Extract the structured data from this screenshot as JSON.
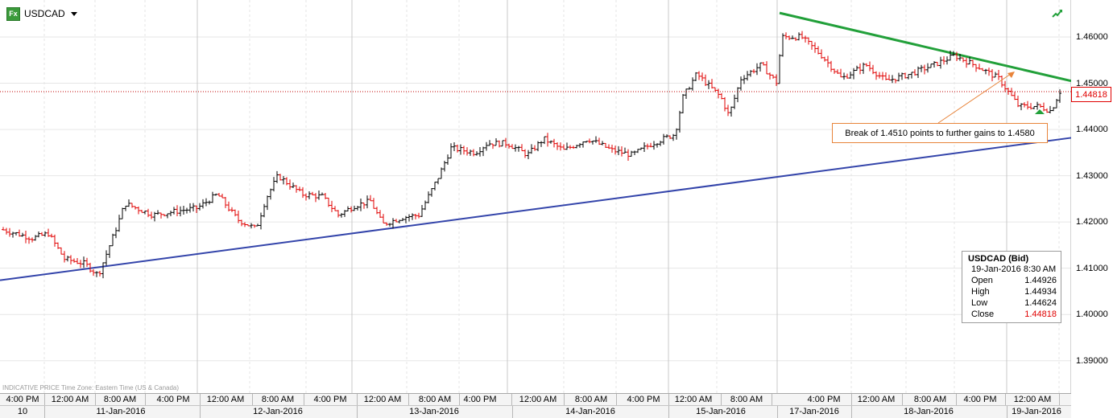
{
  "header": {
    "symbol": "USDCAD",
    "fx_icon": "fx-icon",
    "corner_icon": "trend-arrow-icon"
  },
  "footnote": "INDICATIVE PRICE   Time Zone: Eastern Time (US & Canada)",
  "price_tag": "1.44818",
  "annotation": "Break of 1.4510 points to further gains to 1.4580",
  "info_box": {
    "title": "USDCAD (Bid)",
    "datetime": "19-Jan-2016 8:30 AM",
    "rows": [
      {
        "label": "Open",
        "value": "1.44926"
      },
      {
        "label": "High",
        "value": "1.44934"
      },
      {
        "label": "Low",
        "value": "1.44624"
      },
      {
        "label": "Close",
        "value": "1.44818"
      }
    ]
  },
  "time_ticks": [
    "4:00 PM",
    "12:00 AM",
    "8:00 AM",
    "4:00 PM",
    "12:00 AM",
    "8:00 AM",
    "4:00 PM",
    "12:00 AM",
    "8:00 AM",
    "4:00 PM",
    "12:00 AM",
    "8:00 AM",
    "4:00 PM",
    "12:00 AM",
    "8:00 AM",
    "4:00 PM",
    "12:00 AM",
    "8:00 AM",
    "4:00 PM",
    "12:00 AM"
  ],
  "date_ticks": [
    "10",
    "11-Jan-2016",
    "12-Jan-2016",
    "13-Jan-2016",
    "14-Jan-2016",
    "15-Jan-2016",
    "17-Jan-2016",
    "18-Jan-2016",
    "19-Jan-2016"
  ],
  "colors": {
    "up": "#000000",
    "down": "#e00000",
    "support": "#3344aa",
    "resistance": "#22a03a",
    "grid": "#e6e6e6",
    "current_price": "#c00000",
    "annotation_border": "#e8843a",
    "marker": "#22a03a"
  },
  "chart_data": {
    "type": "candlestick",
    "symbol": "USDCAD",
    "y_ticks": [
      1.39,
      1.4,
      1.41,
      1.42,
      1.43,
      1.44,
      1.45,
      1.46
    ],
    "y_tick_labels": [
      "1.39000",
      "1.40000",
      "1.41000",
      "1.42000",
      "1.43000",
      "1.44000",
      "1.45000",
      "1.46000"
    ],
    "ylim": [
      1.383,
      1.468
    ],
    "current_price": 1.44818,
    "anchors": [
      {
        "t": 0,
        "p": 1.4185
      },
      {
        "t": 40,
        "p": 1.4165
      },
      {
        "t": 60,
        "p": 1.4175
      },
      {
        "t": 80,
        "p": 1.412
      },
      {
        "t": 105,
        "p": 1.411
      },
      {
        "t": 122,
        "p": 1.4085
      },
      {
        "t": 145,
        "p": 1.419
      },
      {
        "t": 155,
        "p": 1.424
      },
      {
        "t": 190,
        "p": 1.4215
      },
      {
        "t": 225,
        "p": 1.4225
      },
      {
        "t": 245,
        "p": 1.423
      },
      {
        "t": 270,
        "p": 1.426
      },
      {
        "t": 295,
        "p": 1.4205
      },
      {
        "t": 318,
        "p": 1.4185
      },
      {
        "t": 330,
        "p": 1.425
      },
      {
        "t": 345,
        "p": 1.43
      },
      {
        "t": 375,
        "p": 1.426
      },
      {
        "t": 400,
        "p": 1.4255
      },
      {
        "t": 420,
        "p": 1.4215
      },
      {
        "t": 440,
        "p": 1.4235
      },
      {
        "t": 460,
        "p": 1.4245
      },
      {
        "t": 475,
        "p": 1.4195
      },
      {
        "t": 500,
        "p": 1.421
      },
      {
        "t": 520,
        "p": 1.4215
      },
      {
        "t": 545,
        "p": 1.43
      },
      {
        "t": 560,
        "p": 1.436
      },
      {
        "t": 590,
        "p": 1.435
      },
      {
        "t": 605,
        "p": 1.437
      },
      {
        "t": 630,
        "p": 1.437
      },
      {
        "t": 655,
        "p": 1.4345
      },
      {
        "t": 675,
        "p": 1.438
      },
      {
        "t": 700,
        "p": 1.4355
      },
      {
        "t": 730,
        "p": 1.438
      },
      {
        "t": 760,
        "p": 1.4355
      },
      {
        "t": 785,
        "p": 1.4345
      },
      {
        "t": 810,
        "p": 1.437
      },
      {
        "t": 838,
        "p": 1.439
      },
      {
        "t": 848,
        "p": 1.447
      },
      {
        "t": 865,
        "p": 1.452
      },
      {
        "t": 895,
        "p": 1.447
      },
      {
        "t": 905,
        "p": 1.443
      },
      {
        "t": 920,
        "p": 1.451
      },
      {
        "t": 945,
        "p": 1.454
      },
      {
        "t": 965,
        "p": 1.45
      },
      {
        "t": 970,
        "p": 1.46
      },
      {
        "t": 995,
        "p": 1.46
      },
      {
        "t": 1020,
        "p": 1.456
      },
      {
        "t": 1045,
        "p": 1.451
      },
      {
        "t": 1075,
        "p": 1.454
      },
      {
        "t": 1100,
        "p": 1.4505
      },
      {
        "t": 1130,
        "p": 1.452
      },
      {
        "t": 1160,
        "p": 1.454
      },
      {
        "t": 1185,
        "p": 1.456
      },
      {
        "t": 1215,
        "p": 1.4535
      },
      {
        "t": 1240,
        "p": 1.451
      },
      {
        "t": 1265,
        "p": 1.445
      },
      {
        "t": 1290,
        "p": 1.445
      },
      {
        "t": 1305,
        "p": 1.444
      },
      {
        "t": 1316,
        "p": 1.4482
      }
    ],
    "trendlines": [
      {
        "name": "support",
        "from": {
          "t": 0,
          "p": 1.4074
        },
        "to": {
          "t": 1330,
          "p": 1.4382
        }
      },
      {
        "name": "resistance",
        "from": {
          "t": 968,
          "p": 1.4652
        },
        "to": {
          "t": 1330,
          "p": 1.4505
        }
      }
    ],
    "session_dividers": [
      245,
      437,
      630,
      830,
      965,
      1250
    ],
    "intraday_dividers": [
      55,
      118,
      180,
      310,
      380,
      505,
      570,
      700,
      765,
      890,
      1057,
      1125,
      1185,
      1315
    ]
  }
}
